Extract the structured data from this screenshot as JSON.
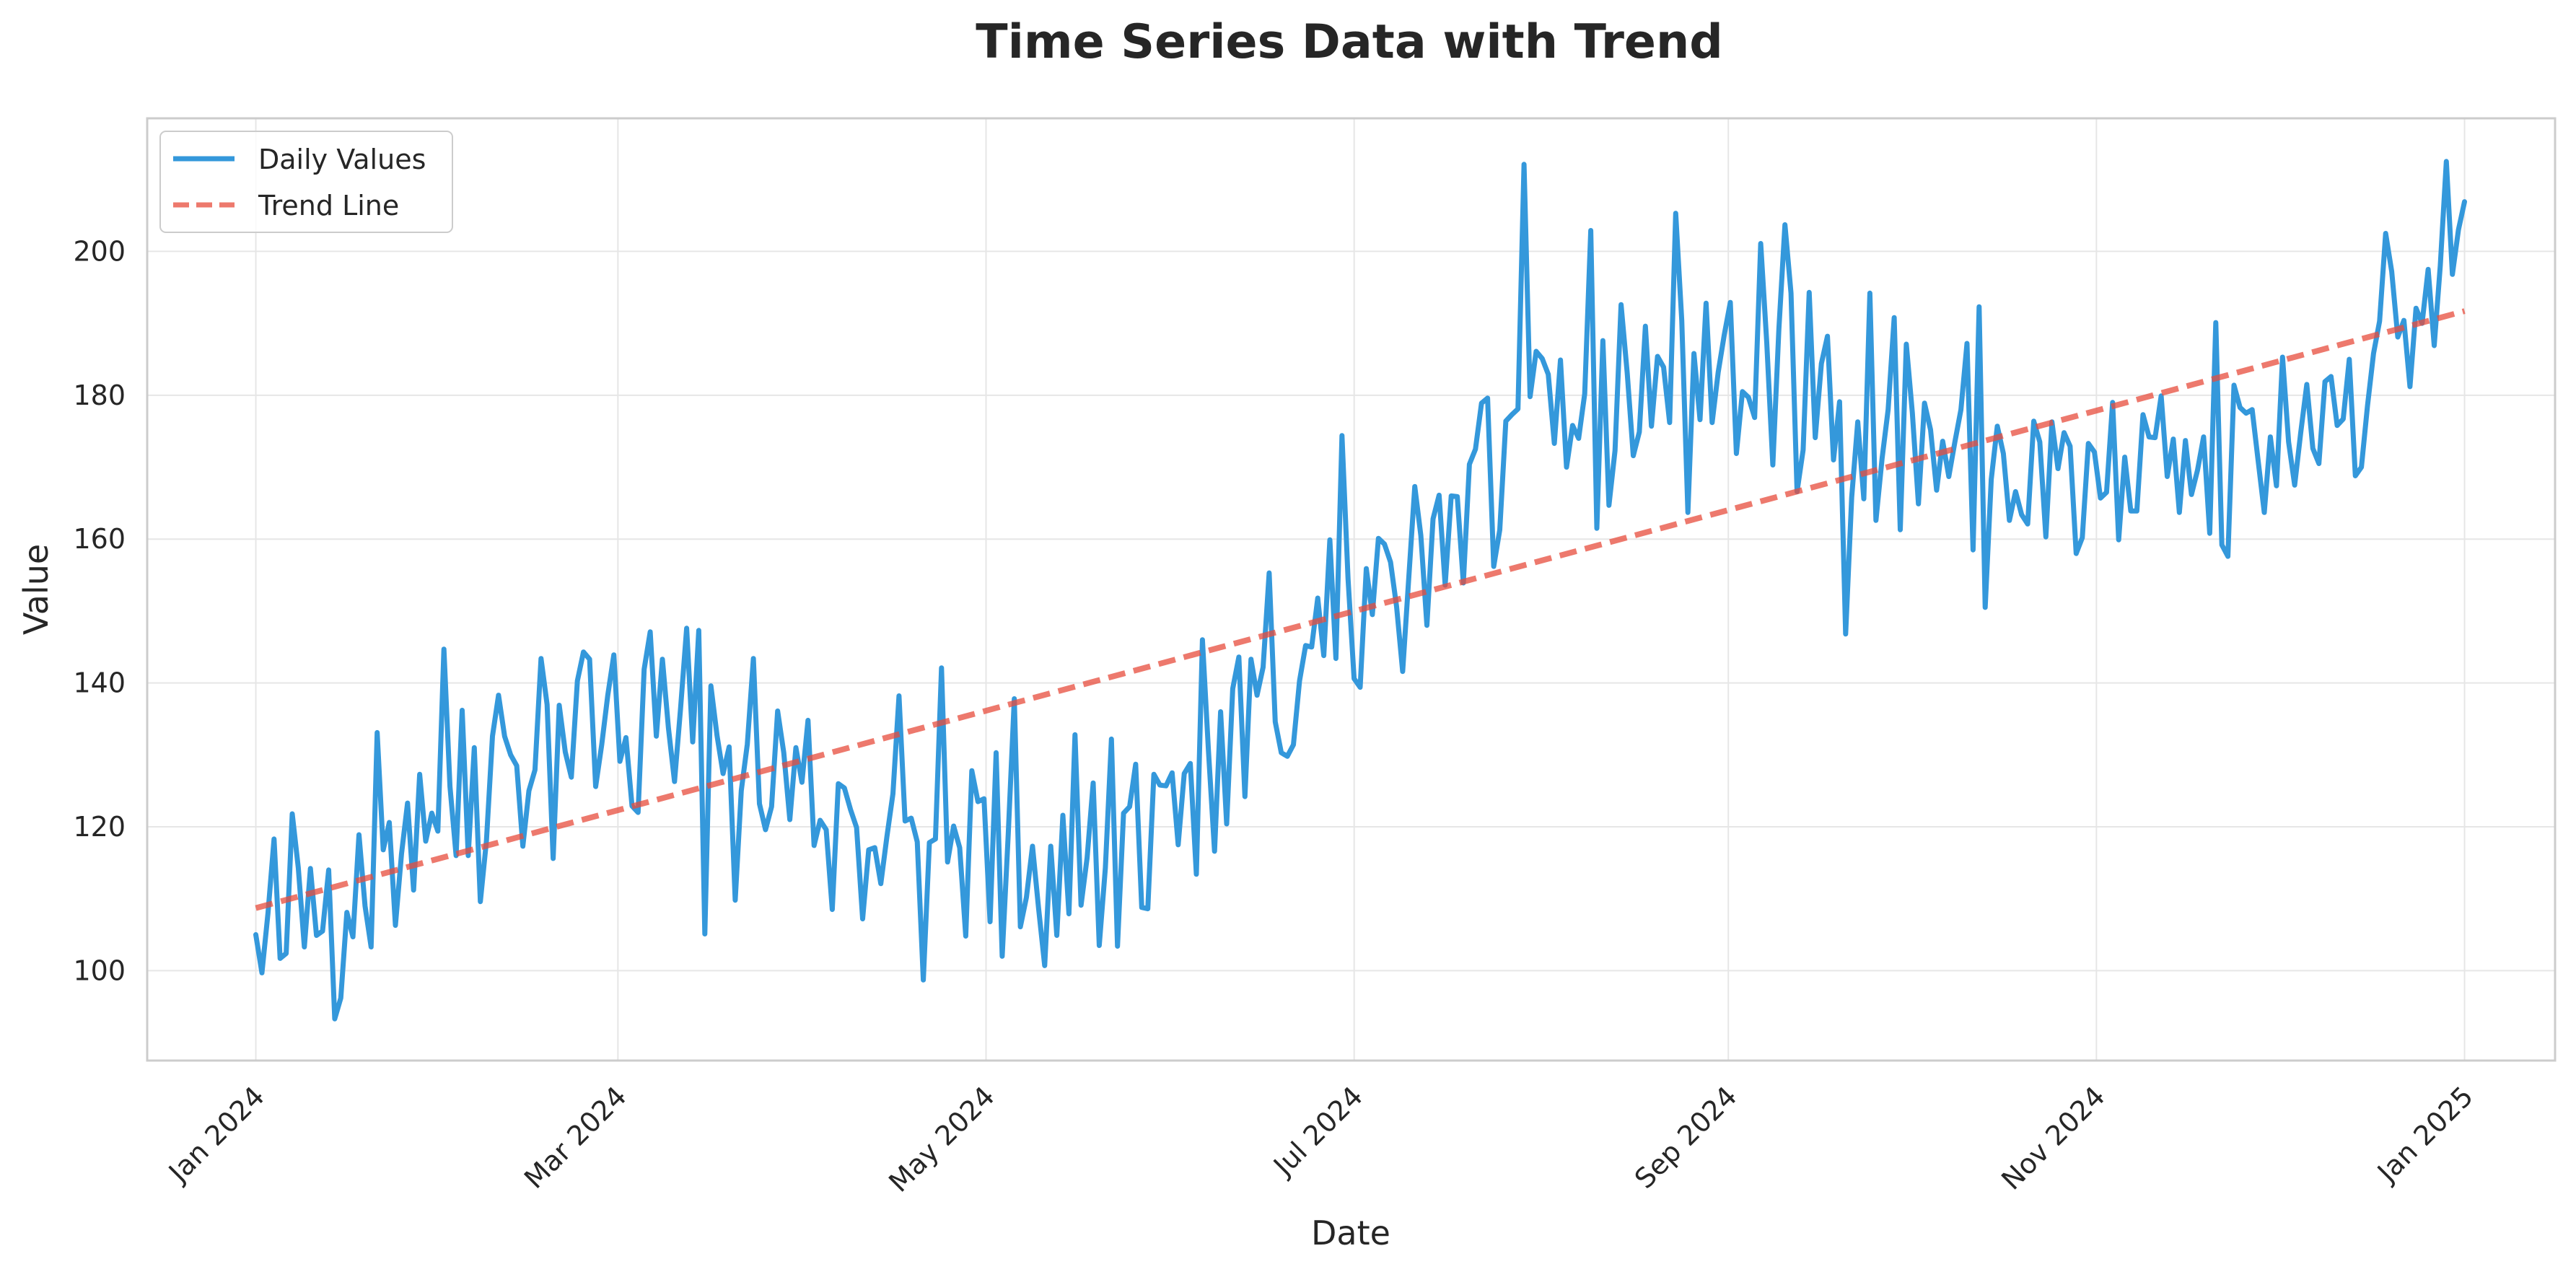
{
  "chart_data": {
    "type": "line",
    "title": "Time Series Data with Trend",
    "xlabel": "Date",
    "ylabel": "Value",
    "xlim": [
      "2023-12-14",
      "2025-01-16"
    ],
    "ylim": [
      87.5,
      218.5
    ],
    "grid": true,
    "legend_position": "top-left",
    "x_ticks": [
      {
        "date": "2024-01-01",
        "label": "Jan 2024"
      },
      {
        "date": "2024-03-01",
        "label": "Mar 2024"
      },
      {
        "date": "2024-05-01",
        "label": "May 2024"
      },
      {
        "date": "2024-07-01",
        "label": "Jul 2024"
      },
      {
        "date": "2024-09-01",
        "label": "Sep 2024"
      },
      {
        "date": "2024-11-01",
        "label": "Nov 2024"
      },
      {
        "date": "2025-01-01",
        "label": "Jan 2025"
      }
    ],
    "y_ticks": [
      100,
      120,
      140,
      160,
      180,
      200
    ],
    "x_start": "2024-01-01",
    "series": [
      {
        "name": "Daily Values",
        "color": "#3498db",
        "style": "solid",
        "values": [
          105.0,
          99.7,
          108.0,
          118.3,
          101.7,
          102.4,
          121.8,
          114.3,
          103.3,
          114.2,
          104.9,
          105.5,
          114.0,
          93.3,
          96.2,
          108.1,
          104.7,
          118.9,
          109.0,
          103.3,
          133.1,
          116.8,
          120.6,
          106.3,
          116.2,
          123.3,
          111.2,
          127.3,
          118.0,
          121.9,
          119.4,
          144.7,
          125.6,
          116.0,
          136.2,
          116.0,
          131.0,
          109.6,
          118.0,
          132.6,
          138.3,
          132.6,
          130.0,
          128.5,
          117.3,
          125.0,
          127.9,
          143.4,
          137.0,
          115.6,
          136.9,
          130.4,
          126.9,
          140.3,
          144.3,
          143.3,
          125.6,
          131.4,
          138.3,
          143.9,
          129.1,
          132.4,
          122.9,
          122.0,
          141.9,
          147.1,
          132.6,
          143.3,
          133.7,
          126.3,
          136.5,
          147.6,
          131.8,
          147.3,
          105.1,
          139.6,
          132.7,
          127.4,
          131.1,
          109.8,
          125.0,
          131.5,
          143.4,
          123.2,
          119.6,
          122.8,
          136.1,
          130.3,
          121.0,
          131.0,
          126.2,
          134.8,
          117.4,
          120.9,
          119.6,
          108.5,
          126.0,
          125.4,
          122.4,
          119.9,
          107.2,
          116.8,
          117.1,
          112.1,
          118.6,
          124.6,
          138.2,
          120.8,
          121.2,
          117.9,
          98.7,
          117.8,
          118.3,
          142.1,
          115.1,
          120.1,
          117.1,
          104.8,
          127.8,
          123.5,
          123.9,
          106.8,
          130.3,
          102.0,
          119.0,
          137.8,
          106.1,
          110.2,
          117.3,
          108.7,
          100.7,
          117.3,
          104.9,
          121.6,
          107.9,
          132.8,
          109.1,
          115.7,
          126.1,
          103.5,
          114.3,
          132.2,
          103.4,
          121.9,
          122.8,
          128.7,
          108.8,
          108.6,
          127.3,
          125.8,
          125.7,
          127.5,
          117.5,
          127.4,
          128.8,
          113.4,
          146.0,
          130.5,
          116.6,
          136.0,
          120.4,
          139.2,
          143.6,
          124.2,
          143.3,
          138.3,
          142.2,
          155.3,
          134.6,
          130.3,
          129.8,
          131.4,
          140.3,
          145.2,
          145.0,
          151.8,
          143.8,
          159.9,
          143.4,
          174.4,
          154.5,
          140.6,
          139.4,
          155.9,
          149.5,
          160.1,
          159.3,
          156.8,
          150.6,
          141.6,
          154.5,
          167.3,
          160.5,
          148.0,
          162.8,
          166.1,
          153.6,
          166.0,
          165.9,
          153.9,
          170.4,
          172.5,
          178.9,
          179.6,
          156.2,
          161.3,
          176.4,
          177.3,
          178.1,
          212.1,
          179.8,
          186.1,
          185.1,
          182.9,
          173.3,
          184.9,
          170.0,
          175.8,
          174.0,
          180.2,
          202.9,
          161.5,
          187.6,
          164.7,
          172.3,
          192.6,
          183.1,
          171.6,
          174.9,
          189.6,
          175.7,
          185.4,
          183.9,
          176.2,
          205.3,
          190.4,
          163.7,
          185.8,
          176.6,
          192.8,
          176.2,
          183.2,
          188.4,
          192.9,
          171.9,
          180.5,
          179.7,
          176.9,
          201.1,
          187.3,
          170.3,
          189.2,
          203.7,
          194.2,
          166.6,
          172.4,
          194.3,
          174.1,
          184.4,
          188.2,
          171.0,
          179.1,
          146.8,
          165.8,
          176.3,
          165.6,
          194.2,
          162.6,
          171.2,
          178.0,
          190.8,
          161.3,
          187.1,
          177.5,
          164.9,
          178.9,
          175.2,
          166.8,
          173.6,
          168.7,
          173.5,
          178.0,
          187.2,
          158.5,
          192.3,
          150.5,
          168.3,
          175.7,
          171.9,
          162.6,
          166.6,
          163.4,
          162.1,
          176.4,
          173.5,
          160.3,
          176.3,
          169.8,
          174.8,
          172.9,
          158.0,
          160.2,
          173.3,
          172.1,
          165.7,
          166.5,
          179.0,
          159.9,
          171.4,
          163.9,
          163.9,
          177.3,
          174.2,
          174.1,
          179.9,
          168.7,
          173.9,
          163.7,
          173.7,
          166.2,
          169.6,
          174.2,
          160.8,
          190.1,
          159.2,
          157.6,
          181.4,
          178.3,
          177.5,
          178.0,
          170.8,
          163.7,
          174.2,
          167.4,
          185.3,
          173.5,
          167.5,
          174.8,
          181.5,
          172.6,
          170.5,
          181.9,
          182.6,
          175.8,
          176.7,
          185.0,
          168.8,
          170.0,
          178.5,
          185.8,
          190.3,
          202.5,
          197.2,
          188.1,
          190.4,
          181.2,
          192.1,
          190.0,
          197.5,
          186.9,
          198.0,
          212.5,
          196.8,
          203.0,
          206.9
        ]
      },
      {
        "name": "Trend Line",
        "color": "#e74c3c",
        "style": "dashed",
        "values": [
          108.7,
          191.7
        ]
      }
    ]
  }
}
